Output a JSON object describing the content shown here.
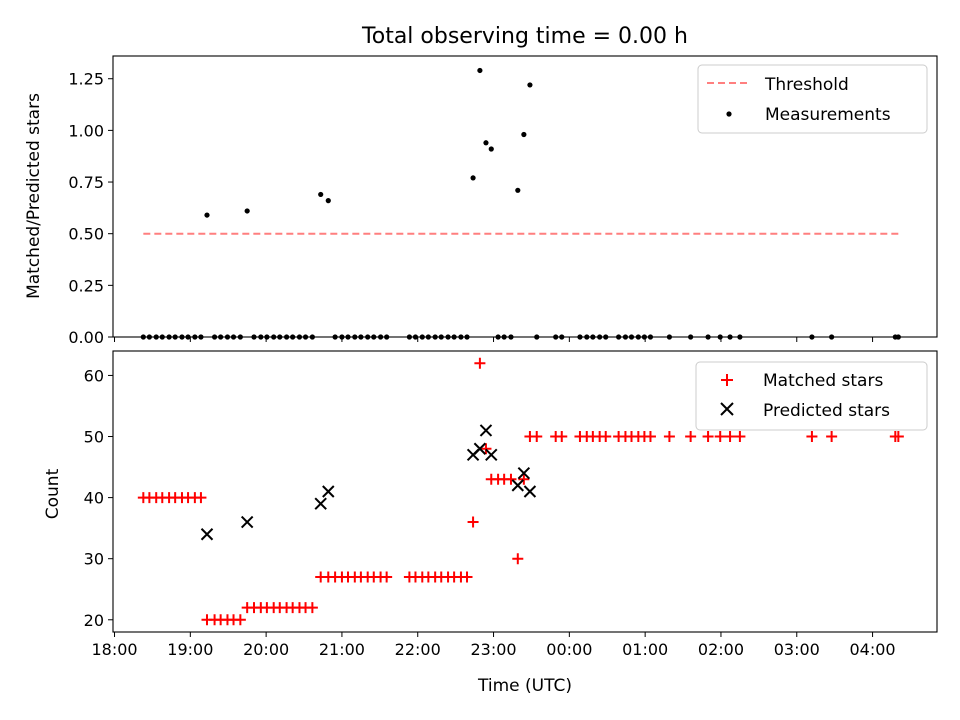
{
  "chart_data": [
    {
      "type": "scatter",
      "title": "Total observing time = 0.00 h",
      "xlabel": "",
      "ylabel": "Matched/Predicted stars",
      "x_unit": "hours since 18:00 UTC",
      "xlim": [
        17.98,
        28.85
      ],
      "ylim": [
        0,
        1.36
      ],
      "yticks": [
        "0.00",
        "0.25",
        "0.50",
        "0.75",
        "1.00",
        "1.25"
      ],
      "ytick_values": [
        0,
        0.25,
        0.5,
        0.75,
        1.0,
        1.25
      ],
      "legend": {
        "placement": "top-right",
        "entries": [
          "Threshold",
          "Measurements"
        ]
      },
      "series": [
        {
          "name": "Threshold",
          "kind": "dashed-line",
          "color": "#ff7f7f",
          "x": [
            18.38,
            28.38
          ],
          "y": [
            0.5,
            0.5
          ]
        },
        {
          "name": "Measurements",
          "kind": "dot",
          "color": "#000000",
          "points": [
            [
              19.22,
              0.59
            ],
            [
              19.75,
              0.61
            ],
            [
              20.72,
              0.69
            ],
            [
              20.82,
              0.66
            ],
            [
              22.73,
              0.77
            ],
            [
              22.82,
              1.29
            ],
            [
              22.9,
              0.94
            ],
            [
              22.97,
              0.91
            ],
            [
              23.32,
              0.71
            ],
            [
              23.4,
              0.98
            ],
            [
              23.48,
              1.22
            ],
            [
              18.38,
              0
            ],
            [
              18.46,
              0
            ],
            [
              18.55,
              0
            ],
            [
              18.63,
              0
            ],
            [
              18.72,
              0
            ],
            [
              18.8,
              0
            ],
            [
              18.89,
              0
            ],
            [
              18.97,
              0
            ],
            [
              19.06,
              0
            ],
            [
              19.14,
              0
            ],
            [
              19.32,
              0
            ],
            [
              19.4,
              0
            ],
            [
              19.49,
              0
            ],
            [
              19.57,
              0
            ],
            [
              19.66,
              0
            ],
            [
              19.84,
              0
            ],
            [
              19.93,
              0
            ],
            [
              20.01,
              0
            ],
            [
              20.1,
              0
            ],
            [
              20.18,
              0
            ],
            [
              20.27,
              0
            ],
            [
              20.35,
              0
            ],
            [
              20.44,
              0
            ],
            [
              20.52,
              0
            ],
            [
              20.61,
              0
            ],
            [
              20.91,
              0
            ],
            [
              21.0,
              0
            ],
            [
              21.08,
              0
            ],
            [
              21.17,
              0
            ],
            [
              21.25,
              0
            ],
            [
              21.34,
              0
            ],
            [
              21.42,
              0
            ],
            [
              21.51,
              0
            ],
            [
              21.59,
              0
            ],
            [
              21.89,
              0
            ],
            [
              21.97,
              0
            ],
            [
              22.06,
              0
            ],
            [
              22.14,
              0
            ],
            [
              22.23,
              0
            ],
            [
              22.31,
              0
            ],
            [
              22.4,
              0
            ],
            [
              22.48,
              0
            ],
            [
              22.57,
              0
            ],
            [
              22.65,
              0
            ],
            [
              23.06,
              0
            ],
            [
              23.14,
              0
            ],
            [
              23.23,
              0
            ],
            [
              23.57,
              0
            ],
            [
              23.82,
              0
            ],
            [
              23.9,
              0
            ],
            [
              24.14,
              0
            ],
            [
              24.23,
              0
            ],
            [
              24.31,
              0
            ],
            [
              24.4,
              0
            ],
            [
              24.48,
              0
            ],
            [
              24.65,
              0
            ],
            [
              24.74,
              0
            ],
            [
              24.82,
              0
            ],
            [
              24.91,
              0
            ],
            [
              24.99,
              0
            ],
            [
              25.07,
              0
            ],
            [
              25.32,
              0
            ],
            [
              25.6,
              0
            ],
            [
              25.83,
              0
            ],
            [
              25.99,
              0
            ],
            [
              26.12,
              0
            ],
            [
              26.25,
              0
            ],
            [
              27.2,
              0
            ],
            [
              27.46,
              0
            ],
            [
              28.3,
              0
            ],
            [
              28.34,
              0
            ]
          ]
        }
      ]
    },
    {
      "type": "scatter",
      "title": "",
      "xlabel": "Time (UTC)",
      "ylabel": "Count",
      "x_unit": "hours since 18:00 UTC",
      "xlim": [
        17.98,
        28.85
      ],
      "ylim": [
        18,
        64
      ],
      "yticks": [
        "20",
        "30",
        "40",
        "50",
        "60"
      ],
      "ytick_values": [
        20,
        30,
        40,
        50,
        60
      ],
      "xticks": [
        "18:00",
        "19:00",
        "20:00",
        "21:00",
        "22:00",
        "23:00",
        "00:00",
        "01:00",
        "02:00",
        "03:00",
        "04:00"
      ],
      "xtick_values": [
        18,
        19,
        20,
        21,
        22,
        23,
        24,
        25,
        26,
        27,
        28
      ],
      "legend": {
        "placement": "top-right",
        "entries": [
          "Matched stars",
          "Predicted stars"
        ]
      },
      "series": [
        {
          "name": "Matched stars",
          "kind": "plus",
          "color": "#ff0000",
          "points": [
            [
              18.38,
              40
            ],
            [
              18.46,
              40
            ],
            [
              18.55,
              40
            ],
            [
              18.63,
              40
            ],
            [
              18.72,
              40
            ],
            [
              18.8,
              40
            ],
            [
              18.89,
              40
            ],
            [
              18.97,
              40
            ],
            [
              19.06,
              40
            ],
            [
              19.14,
              40
            ],
            [
              19.22,
              20
            ],
            [
              19.32,
              20
            ],
            [
              19.4,
              20
            ],
            [
              19.49,
              20
            ],
            [
              19.57,
              20
            ],
            [
              19.66,
              20
            ],
            [
              19.75,
              22
            ],
            [
              19.84,
              22
            ],
            [
              19.93,
              22
            ],
            [
              20.01,
              22
            ],
            [
              20.1,
              22
            ],
            [
              20.18,
              22
            ],
            [
              20.27,
              22
            ],
            [
              20.35,
              22
            ],
            [
              20.44,
              22
            ],
            [
              20.52,
              22
            ],
            [
              20.61,
              22
            ],
            [
              20.72,
              27
            ],
            [
              20.82,
              27
            ],
            [
              20.91,
              27
            ],
            [
              21.0,
              27
            ],
            [
              21.08,
              27
            ],
            [
              21.17,
              27
            ],
            [
              21.25,
              27
            ],
            [
              21.34,
              27
            ],
            [
              21.42,
              27
            ],
            [
              21.51,
              27
            ],
            [
              21.59,
              27
            ],
            [
              21.89,
              27
            ],
            [
              21.97,
              27
            ],
            [
              22.06,
              27
            ],
            [
              22.14,
              27
            ],
            [
              22.23,
              27
            ],
            [
              22.31,
              27
            ],
            [
              22.4,
              27
            ],
            [
              22.48,
              27
            ],
            [
              22.57,
              27
            ],
            [
              22.65,
              27
            ],
            [
              22.73,
              36
            ],
            [
              22.82,
              62
            ],
            [
              22.9,
              48
            ],
            [
              22.97,
              43
            ],
            [
              23.06,
              43
            ],
            [
              23.14,
              43
            ],
            [
              23.23,
              43
            ],
            [
              23.4,
              43
            ],
            [
              23.32,
              30
            ],
            [
              23.48,
              50
            ],
            [
              23.57,
              50
            ],
            [
              23.82,
              50
            ],
            [
              23.9,
              50
            ],
            [
              24.14,
              50
            ],
            [
              24.23,
              50
            ],
            [
              24.31,
              50
            ],
            [
              24.4,
              50
            ],
            [
              24.48,
              50
            ],
            [
              24.65,
              50
            ],
            [
              24.74,
              50
            ],
            [
              24.82,
              50
            ],
            [
              24.91,
              50
            ],
            [
              24.99,
              50
            ],
            [
              25.07,
              50
            ],
            [
              25.32,
              50
            ],
            [
              25.6,
              50
            ],
            [
              25.83,
              50
            ],
            [
              25.99,
              50
            ],
            [
              26.12,
              50
            ],
            [
              26.25,
              50
            ],
            [
              27.2,
              50
            ],
            [
              27.46,
              50
            ],
            [
              28.3,
              50
            ],
            [
              28.34,
              50
            ]
          ]
        },
        {
          "name": "Predicted stars",
          "kind": "cross",
          "color": "#000000",
          "points": [
            [
              19.22,
              34
            ],
            [
              19.75,
              36
            ],
            [
              20.72,
              39
            ],
            [
              20.82,
              41
            ],
            [
              22.73,
              47
            ],
            [
              22.82,
              48
            ],
            [
              22.9,
              51
            ],
            [
              22.97,
              47
            ],
            [
              23.32,
              42
            ],
            [
              23.4,
              44
            ],
            [
              23.48,
              41
            ]
          ]
        }
      ]
    }
  ]
}
